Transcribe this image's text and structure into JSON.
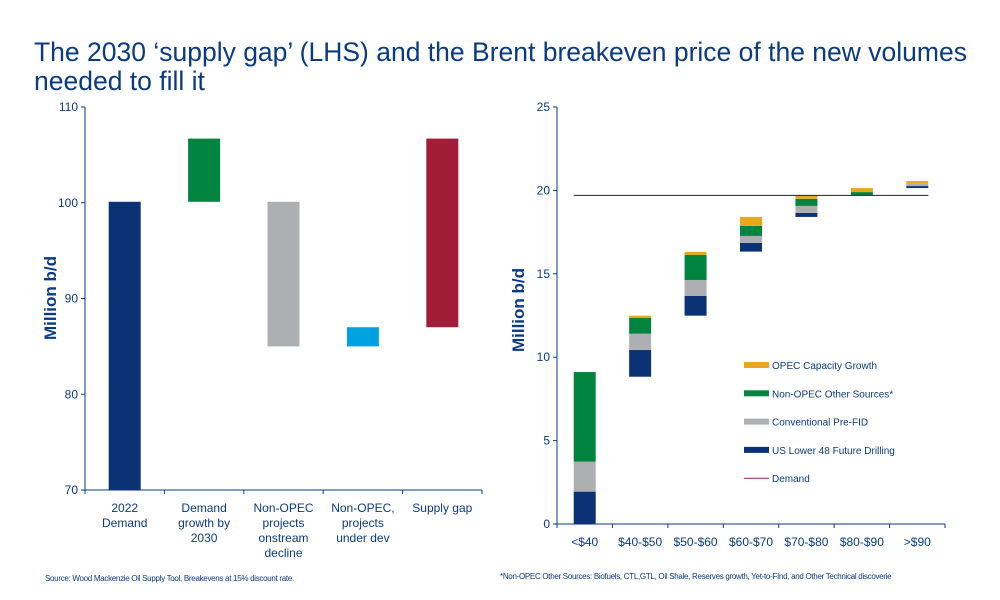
{
  "title": "The 2030 ‘supply gap’ (LHS) and the Brent breakeven price of the new volumes needed to fill it",
  "source_note": "Source: Wood Mackenzie Oil Supply Tool, Breakevens at 15% discount rate.",
  "footnote": "*Non-OPEC Other Sources: Biofuels, CTL,GTL, Oil Shale, Reserves growth, Yet-to-FInd, and Other Technical discoverie",
  "chart_data": [
    {
      "type": "bar",
      "subtype": "waterfall",
      "ylabel": "Million b/d",
      "ylim": [
        70,
        110
      ],
      "yticks": [
        70,
        80,
        90,
        100,
        110
      ],
      "categories": [
        [
          "2022",
          "Demand"
        ],
        [
          "Demand",
          "growth by",
          "2030"
        ],
        [
          "Non-OPEC",
          "projects",
          "onstream",
          "decline"
        ],
        [
          "Non-OPEC,",
          "projects",
          "under dev"
        ],
        [
          "Supply gap"
        ]
      ],
      "bars": [
        {
          "low": 70,
          "high": 100.1,
          "color": "#0a3275"
        },
        {
          "low": 100.1,
          "high": 106.7,
          "color": "#00843f"
        },
        {
          "low": 85.0,
          "high": 100.1,
          "color": "#aeafb3"
        },
        {
          "low": 85.0,
          "high": 87.0,
          "color": "#00a3e0"
        },
        {
          "low": 87.0,
          "high": 106.7,
          "color": "#a11c37"
        }
      ],
      "grid": false
    },
    {
      "type": "bar",
      "subtype": "stacked-floating",
      "ylabel": "Million b/d",
      "ylim": [
        0,
        25
      ],
      "yticks": [
        0,
        5,
        10,
        15,
        20,
        25
      ],
      "categories": [
        "<$40",
        "$40-$50",
        "$50-$60",
        "$60-$70",
        "$70-$80",
        "$80-$90",
        ">$90"
      ],
      "base": [
        0,
        8.83,
        12.49,
        16.33,
        18.41,
        19.72,
        20.14
      ],
      "series": [
        {
          "name": "US Lower 48 Future Drilling",
          "color": "#0a3275",
          "values": [
            1.94,
            1.6,
            1.18,
            0.52,
            0.24,
            0,
            0.12
          ]
        },
        {
          "name": "Conventional Pre-FID",
          "color": "#aeafb3",
          "values": [
            1.8,
            0.98,
            0.96,
            0.42,
            0.42,
            0,
            0.16
          ]
        },
        {
          "name": "Non-OPEC Other Sources*",
          "color": "#00843f",
          "values": [
            5.37,
            0.94,
            1.5,
            0.6,
            0.42,
            0.18,
            0
          ]
        },
        {
          "name": "OPEC Capacity Growth",
          "color": "#e8a81c",
          "values": [
            0,
            0.14,
            0.18,
            0.54,
            0.21,
            0.24,
            0.14
          ]
        }
      ],
      "demand": {
        "name": "Demand",
        "value": 19.7,
        "color": "#a11c37"
      },
      "legend_order": [
        3,
        2,
        1,
        0
      ],
      "legend": "right-middle",
      "grid": false
    }
  ]
}
